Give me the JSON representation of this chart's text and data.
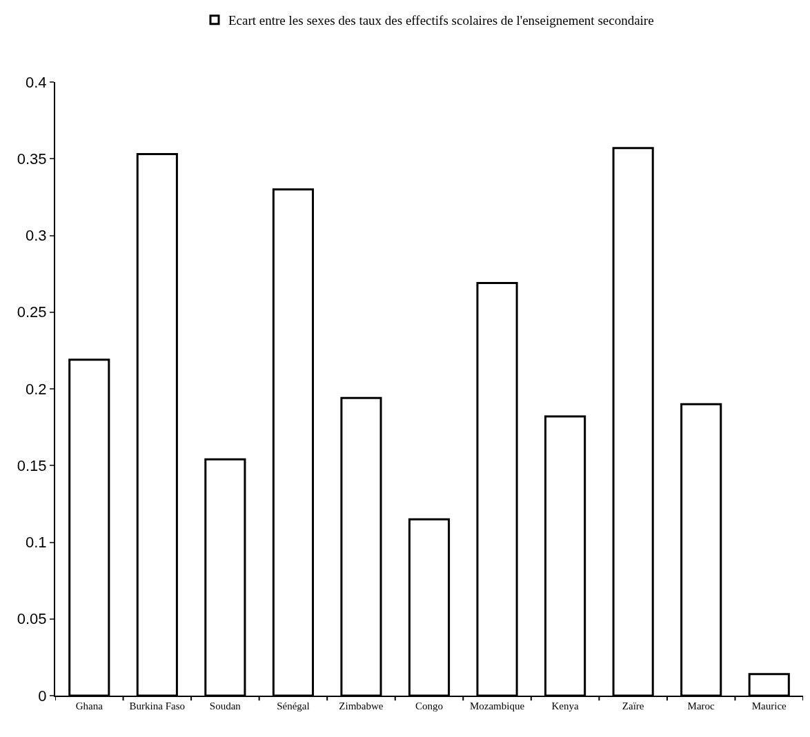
{
  "chart_data": {
    "type": "bar",
    "categories": [
      "Ghana",
      "Burkina Faso",
      "Soudan",
      "Sénégal",
      "Zimbabwe",
      "Congo",
      "Mozambique",
      "Kenya",
      "Zaïre",
      "Maroc",
      "Maurice"
    ],
    "series": [
      {
        "name": "Ecart entre les sexes des taux des effectifs scolaires de l'enseignement secondaire",
        "color": "#ffffff",
        "values": [
          0.219,
          0.353,
          0.154,
          0.33,
          0.194,
          0.115,
          0.269,
          0.182,
          0.357,
          0.19,
          0.014
        ]
      }
    ],
    "ylim": [
      0,
      0.4
    ],
    "yticks": [
      0,
      0.05,
      0.1,
      0.15,
      0.2,
      0.25,
      0.3,
      0.35,
      0.4
    ],
    "legend": "top"
  }
}
